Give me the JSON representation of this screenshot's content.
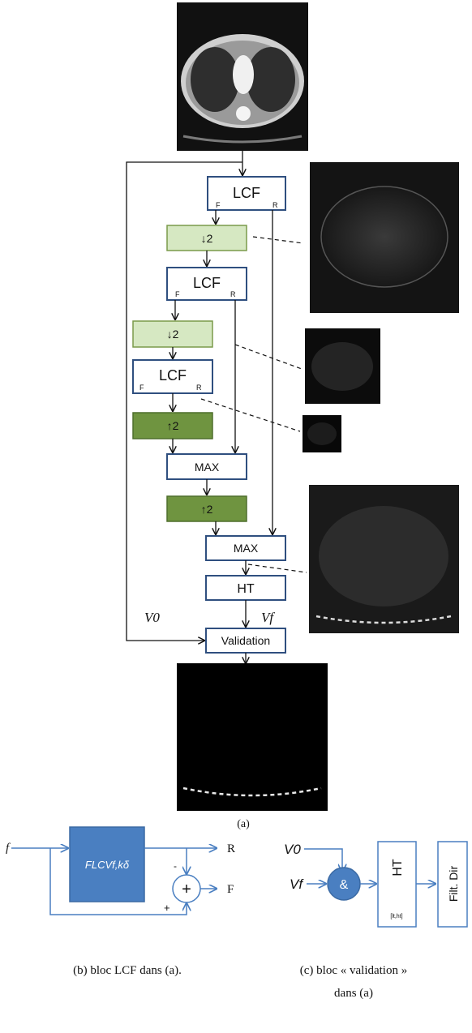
{
  "diagram_a": {
    "lcf_label": "LCF",
    "port_f": "F",
    "port_r": "R",
    "down_label": "↓2",
    "up_label": "↑2",
    "max_label": "MAX",
    "ht_label": "HT",
    "validation_label": "Validation",
    "v0_label": "V0",
    "vf_label": "Vf",
    "caption": "(a)"
  },
  "diagram_b": {
    "input_label": "f",
    "block_label": "FLCVf,kδ",
    "output_r": "R",
    "output_f": "F",
    "minus_sign": "-",
    "plus_sign": "+",
    "sum_symbol": "+",
    "caption": "(b) bloc LCF dans (a)."
  },
  "diagram_c": {
    "v0_label": "V0",
    "vf_label": "Vf",
    "and_symbol": "&",
    "ht_label": "HT",
    "ht_sub": "[lt,ht]",
    "filt_label": "Filt. Dir",
    "caption_line1": "(c) bloc « validation »",
    "caption_line2": "dans (a)"
  },
  "colors": {
    "box_border": "#2f4f7f",
    "downsample_fill": "#d6e8c2",
    "upsample_fill": "#6f9440",
    "accent_blue": "#4a7fc1"
  }
}
